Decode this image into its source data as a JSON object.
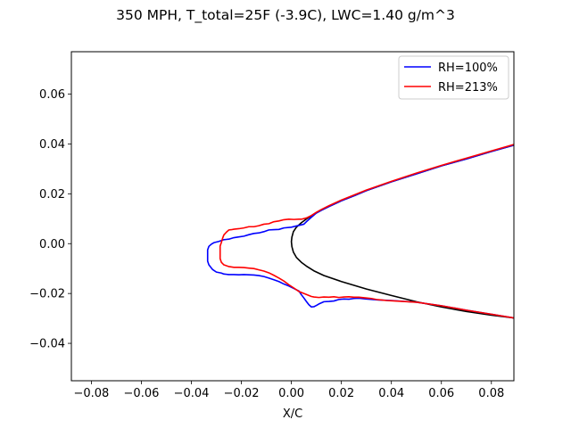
{
  "chart_data": {
    "type": "line",
    "title": "350 MPH, T_total=25F (-3.9C), LWC=1.40 g/m^3",
    "xlabel": "X/C",
    "ylabel": "",
    "xlim": [
      -0.088,
      0.089
    ],
    "ylim": [
      -0.055,
      0.077
    ],
    "xticks": [
      -0.08,
      -0.06,
      -0.04,
      -0.02,
      0.0,
      0.02,
      0.04,
      0.06,
      0.08
    ],
    "xtick_labels": [
      "−0.08",
      "−0.06",
      "−0.04",
      "−0.02",
      "0.00",
      "0.02",
      "0.04",
      "0.06",
      "0.08"
    ],
    "yticks": [
      -0.04,
      -0.02,
      0.0,
      0.02,
      0.04,
      0.06
    ],
    "ytick_labels": [
      "−0.04",
      "−0.02",
      "0.00",
      "0.02",
      "0.04",
      "0.06"
    ],
    "grid": false,
    "legend_position": "top-right",
    "series": [
      {
        "name": "",
        "color": "#000000",
        "x": [
          0.089,
          0.08,
          0.07,
          0.06,
          0.05,
          0.04,
          0.03,
          0.025,
          0.02,
          0.015,
          0.012,
          0.009,
          0.006,
          0.004,
          0.002,
          0.0008,
          0.0002,
          0.0,
          0.0002,
          0.0008,
          0.002,
          0.004,
          0.006,
          0.009,
          0.013,
          0.02,
          0.03,
          0.04,
          0.05,
          0.06,
          0.07,
          0.08,
          0.089
        ],
        "y": [
          0.0395,
          0.037,
          0.034,
          0.0312,
          0.028,
          0.0248,
          0.0213,
          0.0192,
          0.0172,
          0.0149,
          0.0134,
          0.0118,
          0.0099,
          0.0084,
          0.0066,
          0.0048,
          0.0026,
          0.0008,
          -0.0012,
          -0.0034,
          -0.0055,
          -0.0075,
          -0.009,
          -0.0109,
          -0.0128,
          -0.0152,
          -0.0182,
          -0.0208,
          -0.0233,
          -0.0254,
          -0.0272,
          -0.0287,
          -0.0298
        ]
      },
      {
        "name": "RH=100%",
        "color": "#0000ff",
        "x": [
          0.089,
          0.08,
          0.07,
          0.06,
          0.05,
          0.04,
          0.03,
          0.025,
          0.02,
          0.015,
          0.012,
          0.01,
          0.008,
          0.006,
          0.005,
          0.003,
          0.002,
          0.0,
          -0.003,
          -0.005,
          -0.007,
          -0.009,
          -0.011,
          -0.013,
          -0.015,
          -0.017,
          -0.019,
          -0.021,
          -0.023,
          -0.025,
          -0.027,
          -0.029,
          -0.031,
          -0.032,
          -0.033,
          -0.0335,
          -0.0335,
          -0.033,
          -0.0315,
          -0.03,
          -0.028,
          -0.027,
          -0.025,
          -0.023,
          -0.021,
          -0.019,
          -0.017,
          -0.015,
          -0.013,
          -0.011,
          -0.009,
          -0.007,
          -0.005,
          -0.003,
          -0.001,
          0.001,
          0.003,
          0.004,
          0.005,
          0.006,
          0.007,
          0.008,
          0.009,
          0.01,
          0.011,
          0.013,
          0.015,
          0.017,
          0.019,
          0.021,
          0.023,
          0.025,
          0.027,
          0.03,
          0.035,
          0.04,
          0.05,
          0.06,
          0.07,
          0.08,
          0.089
        ],
        "y": [
          0.0395,
          0.037,
          0.034,
          0.0312,
          0.028,
          0.0248,
          0.0213,
          0.0192,
          0.0172,
          0.0149,
          0.0134,
          0.0123,
          0.0106,
          0.0088,
          0.0078,
          0.0073,
          0.0071,
          0.0066,
          0.0063,
          0.0057,
          0.0056,
          0.0055,
          0.0048,
          0.0043,
          0.0041,
          0.0036,
          0.003,
          0.0027,
          0.0024,
          0.0018,
          0.0016,
          0.0009,
          0.0004,
          -0.0002,
          -0.0011,
          -0.0025,
          -0.007,
          -0.0085,
          -0.0104,
          -0.0114,
          -0.0118,
          -0.0122,
          -0.0124,
          -0.0124,
          -0.0125,
          -0.0124,
          -0.0125,
          -0.0126,
          -0.0128,
          -0.0132,
          -0.0138,
          -0.0145,
          -0.0152,
          -0.0162,
          -0.017,
          -0.018,
          -0.019,
          -0.0205,
          -0.0218,
          -0.0232,
          -0.0245,
          -0.0254,
          -0.0253,
          -0.0248,
          -0.0242,
          -0.0233,
          -0.0232,
          -0.023,
          -0.0224,
          -0.0222,
          -0.0223,
          -0.022,
          -0.0219,
          -0.0222,
          -0.0226,
          -0.0228,
          -0.0235,
          -0.0249,
          -0.0267,
          -0.0283,
          -0.0298
        ]
      },
      {
        "name": "RH=213%",
        "color": "#ff0000",
        "x": [
          0.089,
          0.08,
          0.07,
          0.06,
          0.05,
          0.04,
          0.03,
          0.025,
          0.02,
          0.015,
          0.012,
          0.01,
          0.008,
          0.006,
          0.004,
          0.003,
          0.001,
          -0.001,
          -0.003,
          -0.005,
          -0.007,
          -0.009,
          -0.011,
          -0.013,
          -0.015,
          -0.017,
          -0.019,
          -0.021,
          -0.023,
          -0.024,
          -0.025,
          -0.026,
          -0.027,
          -0.0275,
          -0.028,
          -0.0285,
          -0.0285,
          -0.028,
          -0.027,
          -0.025,
          -0.023,
          -0.021,
          -0.019,
          -0.017,
          -0.015,
          -0.013,
          -0.011,
          -0.009,
          -0.007,
          -0.005,
          -0.003,
          -0.001,
          0.001,
          0.003,
          0.005,
          0.006,
          0.007,
          0.008,
          0.009,
          0.011,
          0.013,
          0.015,
          0.017,
          0.019,
          0.021,
          0.023,
          0.025,
          0.027,
          0.03,
          0.032,
          0.034,
          0.036,
          0.038,
          0.04,
          0.05,
          0.06,
          0.07,
          0.08,
          0.089
        ],
        "y": [
          0.0398,
          0.0372,
          0.0343,
          0.0314,
          0.0283,
          0.025,
          0.0215,
          0.0195,
          0.0175,
          0.0152,
          0.0137,
          0.0126,
          0.0113,
          0.0103,
          0.0098,
          0.0098,
          0.0097,
          0.0098,
          0.0096,
          0.0091,
          0.0088,
          0.008,
          0.0078,
          0.0072,
          0.0068,
          0.0068,
          0.0063,
          0.006,
          0.0058,
          0.0056,
          0.0055,
          0.0046,
          0.0035,
          0.0022,
          0.0005,
          -0.001,
          -0.006,
          -0.0075,
          -0.0085,
          -0.0092,
          -0.0095,
          -0.0095,
          -0.0096,
          -0.0098,
          -0.01,
          -0.0105,
          -0.011,
          -0.0117,
          -0.0127,
          -0.0138,
          -0.015,
          -0.0165,
          -0.0178,
          -0.0192,
          -0.02,
          -0.0204,
          -0.0208,
          -0.0212,
          -0.0214,
          -0.0216,
          -0.0214,
          -0.0215,
          -0.0213,
          -0.0216,
          -0.0214,
          -0.0213,
          -0.0215,
          -0.0215,
          -0.0218,
          -0.022,
          -0.0224,
          -0.0226,
          -0.0228,
          -0.0229,
          -0.0235,
          -0.0249,
          -0.0267,
          -0.0283,
          -0.0298
        ]
      }
    ]
  }
}
